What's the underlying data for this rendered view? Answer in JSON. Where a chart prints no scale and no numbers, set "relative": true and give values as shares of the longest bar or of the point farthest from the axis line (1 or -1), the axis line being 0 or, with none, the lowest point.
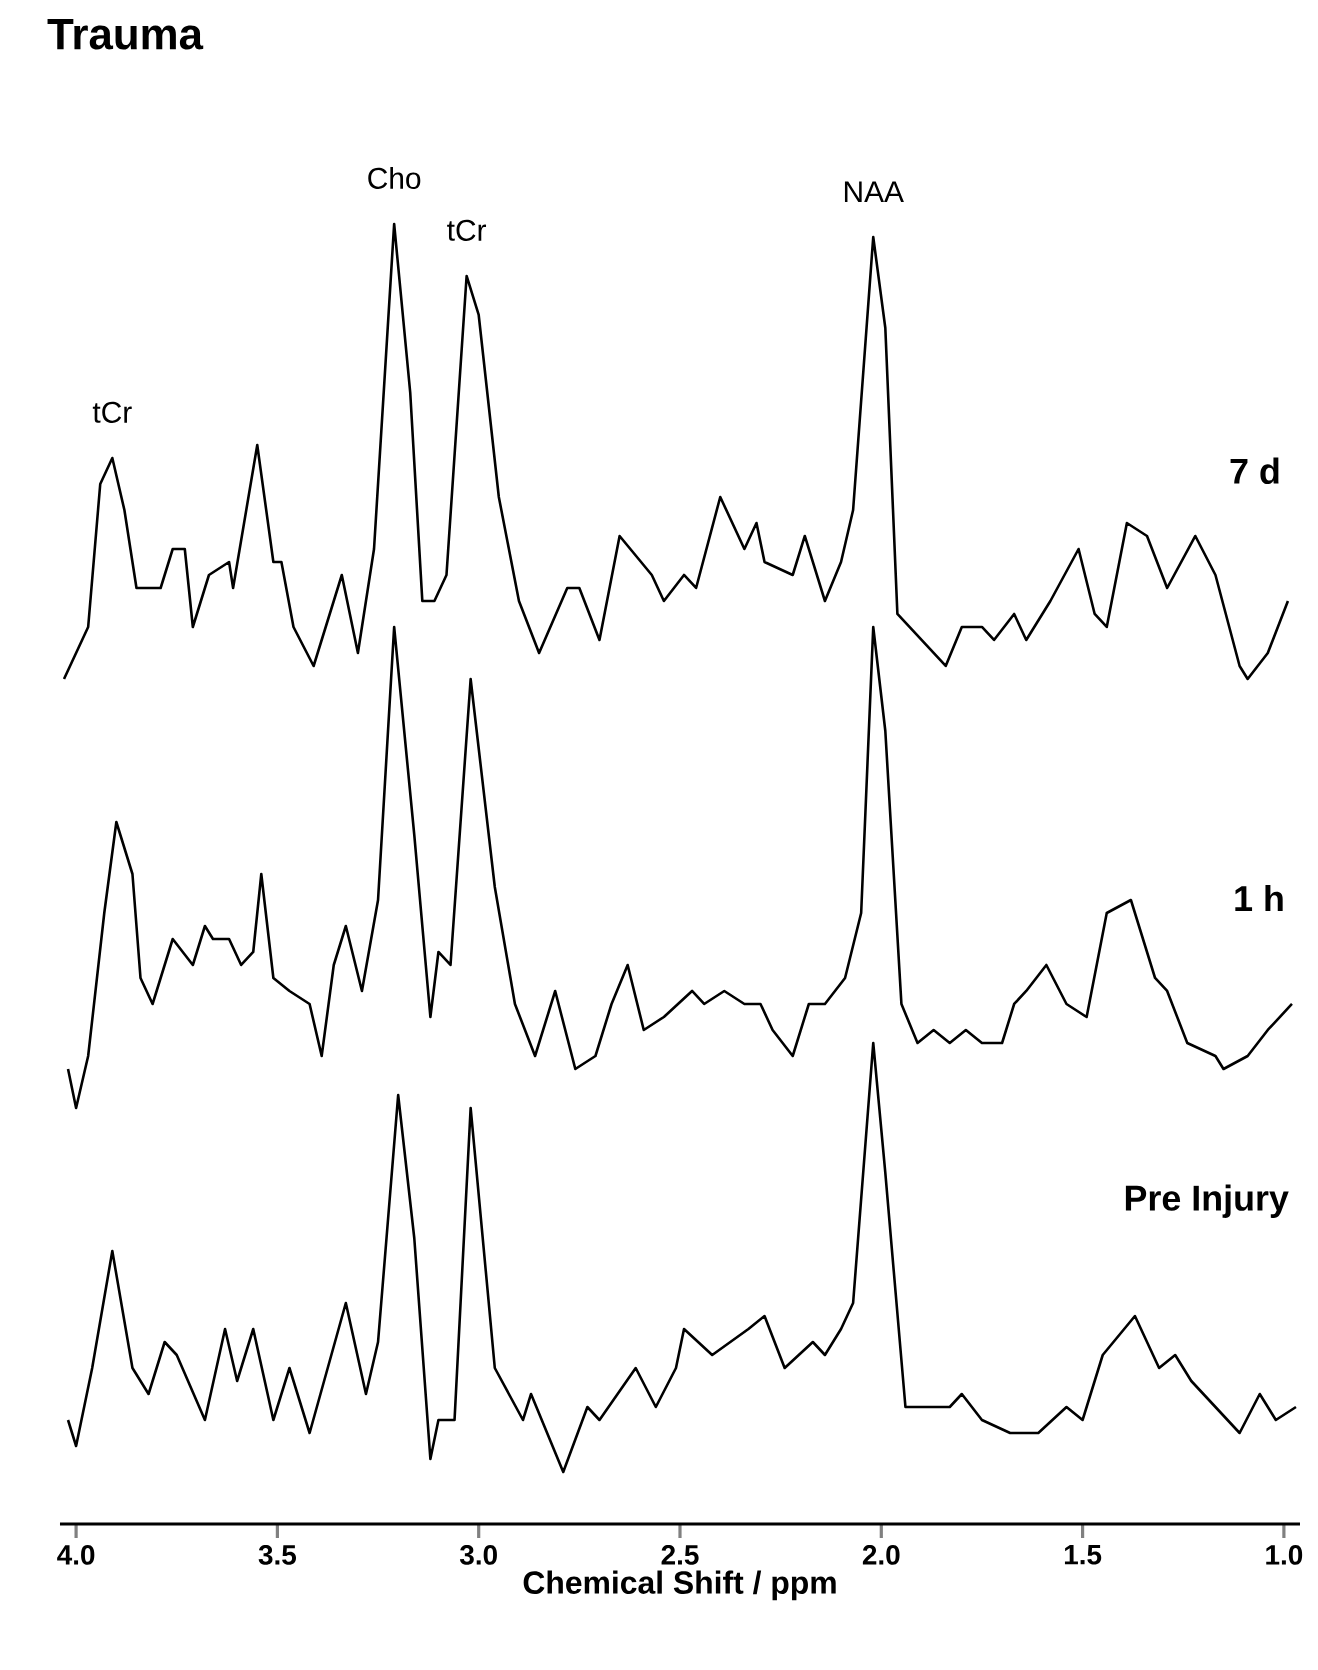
{
  "chart_data": {
    "type": "line",
    "title": "Trauma",
    "xlabel": "Chemical Shift / ppm",
    "relative": true,
    "xlim": [
      4.04,
      0.96
    ],
    "xticks": [
      {
        "value": 4.0,
        "label": "4.0"
      },
      {
        "value": 3.5,
        "label": "3.5"
      },
      {
        "value": 3.0,
        "label": "3.0"
      },
      {
        "value": 2.5,
        "label": "2.5"
      },
      {
        "value": 2.0,
        "label": "2.0"
      },
      {
        "value": 1.5,
        "label": "1.5"
      },
      {
        "value": 1.0,
        "label": "1.0"
      }
    ],
    "annotations": [
      {
        "text": "tCr",
        "x": 3.91,
        "y": 0.82
      },
      {
        "text": "Cho",
        "x": 3.21,
        "y": 1.0
      },
      {
        "text": "tCr",
        "x": 3.03,
        "y": 0.96
      },
      {
        "text": "NAA",
        "x": 2.02,
        "y": 0.99
      }
    ],
    "series": [
      {
        "name": "7 d",
        "color": "#000000",
        "x": [
          4.03,
          3.97,
          3.94,
          3.91,
          3.88,
          3.85,
          3.79,
          3.76,
          3.73,
          3.71,
          3.67,
          3.62,
          3.61,
          3.55,
          3.51,
          3.49,
          3.46,
          3.41,
          3.34,
          3.3,
          3.26,
          3.21,
          3.17,
          3.14,
          3.11,
          3.08,
          3.03,
          3.0,
          2.95,
          2.9,
          2.85,
          2.78,
          2.75,
          2.7,
          2.65,
          2.57,
          2.54,
          2.49,
          2.46,
          2.4,
          2.34,
          2.31,
          2.29,
          2.22,
          2.19,
          2.14,
          2.1,
          2.07,
          2.02,
          1.99,
          1.96,
          1.9,
          1.84,
          1.8,
          1.75,
          1.72,
          1.67,
          1.64,
          1.58,
          1.51,
          1.47,
          1.44,
          1.39,
          1.34,
          1.29,
          1.22,
          1.17,
          1.11,
          1.09,
          1.04,
          0.99
        ],
        "values": [
          0.65,
          0.69,
          0.8,
          0.82,
          0.78,
          0.72,
          0.72,
          0.75,
          0.75,
          0.69,
          0.73,
          0.74,
          0.72,
          0.83,
          0.74,
          0.74,
          0.69,
          0.66,
          0.73,
          0.67,
          0.75,
          1.0,
          0.87,
          0.71,
          0.71,
          0.73,
          0.96,
          0.93,
          0.79,
          0.71,
          0.67,
          0.72,
          0.72,
          0.68,
          0.76,
          0.73,
          0.71,
          0.73,
          0.72,
          0.79,
          0.75,
          0.77,
          0.74,
          0.73,
          0.76,
          0.71,
          0.74,
          0.78,
          0.99,
          0.92,
          0.7,
          0.68,
          0.66,
          0.69,
          0.69,
          0.68,
          0.7,
          0.68,
          0.71,
          0.75,
          0.7,
          0.69,
          0.77,
          0.76,
          0.72,
          0.76,
          0.73,
          0.66,
          0.65,
          0.67,
          0.71
        ]
      },
      {
        "name": "1 h",
        "color": "#000000",
        "x": [
          4.02,
          4.0,
          3.97,
          3.93,
          3.9,
          3.86,
          3.84,
          3.81,
          3.76,
          3.71,
          3.68,
          3.66,
          3.62,
          3.59,
          3.56,
          3.54,
          3.51,
          3.47,
          3.42,
          3.39,
          3.36,
          3.33,
          3.29,
          3.25,
          3.21,
          3.16,
          3.12,
          3.1,
          3.07,
          3.02,
          2.96,
          2.91,
          2.86,
          2.81,
          2.76,
          2.71,
          2.67,
          2.63,
          2.59,
          2.54,
          2.47,
          2.44,
          2.39,
          2.34,
          2.3,
          2.27,
          2.22,
          2.18,
          2.14,
          2.09,
          2.05,
          2.02,
          1.99,
          1.95,
          1.91,
          1.87,
          1.83,
          1.79,
          1.75,
          1.7,
          1.67,
          1.64,
          1.59,
          1.54,
          1.49,
          1.44,
          1.38,
          1.32,
          1.29,
          1.24,
          1.17,
          1.15,
          1.09,
          1.04,
          0.98
        ],
        "values": [
          0.35,
          0.32,
          0.36,
          0.47,
          0.54,
          0.5,
          0.42,
          0.4,
          0.45,
          0.43,
          0.46,
          0.45,
          0.45,
          0.43,
          0.44,
          0.5,
          0.42,
          0.41,
          0.4,
          0.36,
          0.43,
          0.46,
          0.41,
          0.48,
          0.69,
          0.53,
          0.39,
          0.44,
          0.43,
          0.65,
          0.49,
          0.4,
          0.36,
          0.41,
          0.35,
          0.36,
          0.4,
          0.43,
          0.38,
          0.39,
          0.41,
          0.4,
          0.41,
          0.4,
          0.4,
          0.38,
          0.36,
          0.4,
          0.4,
          0.42,
          0.47,
          0.69,
          0.61,
          0.4,
          0.37,
          0.38,
          0.37,
          0.38,
          0.37,
          0.37,
          0.4,
          0.41,
          0.43,
          0.4,
          0.39,
          0.47,
          0.48,
          0.42,
          0.41,
          0.37,
          0.36,
          0.35,
          0.36,
          0.38,
          0.4
        ]
      },
      {
        "name": "Pre Injury",
        "color": "#000000",
        "x": [
          4.02,
          4.0,
          3.96,
          3.91,
          3.86,
          3.82,
          3.78,
          3.75,
          3.68,
          3.63,
          3.6,
          3.56,
          3.51,
          3.47,
          3.42,
          3.33,
          3.28,
          3.25,
          3.2,
          3.16,
          3.12,
          3.1,
          3.06,
          3.02,
          2.96,
          2.89,
          2.87,
          2.79,
          2.73,
          2.7,
          2.61,
          2.56,
          2.51,
          2.49,
          2.42,
          2.33,
          2.29,
          2.24,
          2.17,
          2.14,
          2.1,
          2.07,
          2.02,
          1.99,
          1.94,
          1.89,
          1.83,
          1.8,
          1.75,
          1.68,
          1.61,
          1.54,
          1.5,
          1.45,
          1.37,
          1.31,
          1.27,
          1.23,
          1.14,
          1.11,
          1.06,
          1.02,
          0.97
        ],
        "values": [
          0.08,
          0.06,
          0.12,
          0.21,
          0.12,
          0.1,
          0.14,
          0.13,
          0.08,
          0.15,
          0.11,
          0.15,
          0.08,
          0.12,
          0.07,
          0.17,
          0.1,
          0.14,
          0.33,
          0.22,
          0.05,
          0.08,
          0.08,
          0.32,
          0.12,
          0.08,
          0.1,
          0.04,
          0.09,
          0.08,
          0.12,
          0.09,
          0.12,
          0.15,
          0.13,
          0.15,
          0.16,
          0.12,
          0.14,
          0.13,
          0.15,
          0.17,
          0.37,
          0.27,
          0.09,
          0.09,
          0.09,
          0.1,
          0.08,
          0.07,
          0.07,
          0.09,
          0.08,
          0.13,
          0.16,
          0.12,
          0.13,
          0.11,
          0.08,
          0.07,
          0.1,
          0.08,
          0.09
        ]
      }
    ]
  }
}
